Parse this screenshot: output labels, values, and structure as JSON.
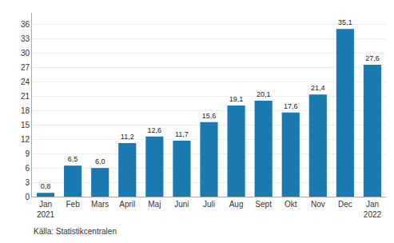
{
  "chart_data": {
    "type": "bar",
    "categories": [
      "Jan\n2021",
      "Feb",
      "Mars",
      "April",
      "Maj",
      "Juni",
      "Juli",
      "Aug",
      "Sept",
      "Okt",
      "Nov",
      "Dec",
      "Jan\n2022"
    ],
    "values": [
      0.8,
      6.5,
      6.0,
      11.2,
      12.6,
      11.7,
      15.6,
      19.1,
      20.1,
      17.6,
      21.4,
      35.1,
      27.6
    ],
    "value_labels": [
      "0,8",
      "6,5",
      "6,0",
      "11,2",
      "12,6",
      "11,7",
      "15,6",
      "19,1",
      "20,1",
      "17,6",
      "21,4",
      "35,1",
      "27,6"
    ],
    "data_labels": true,
    "color": "#1a7aaf",
    "ylim": [
      0,
      38.5
    ],
    "yticks": [
      0,
      3,
      6,
      9,
      12,
      15,
      18,
      21,
      24,
      27,
      30,
      33,
      36
    ],
    "grid": true,
    "annotations": [
      "Källa: Statistikcentralen"
    ]
  }
}
